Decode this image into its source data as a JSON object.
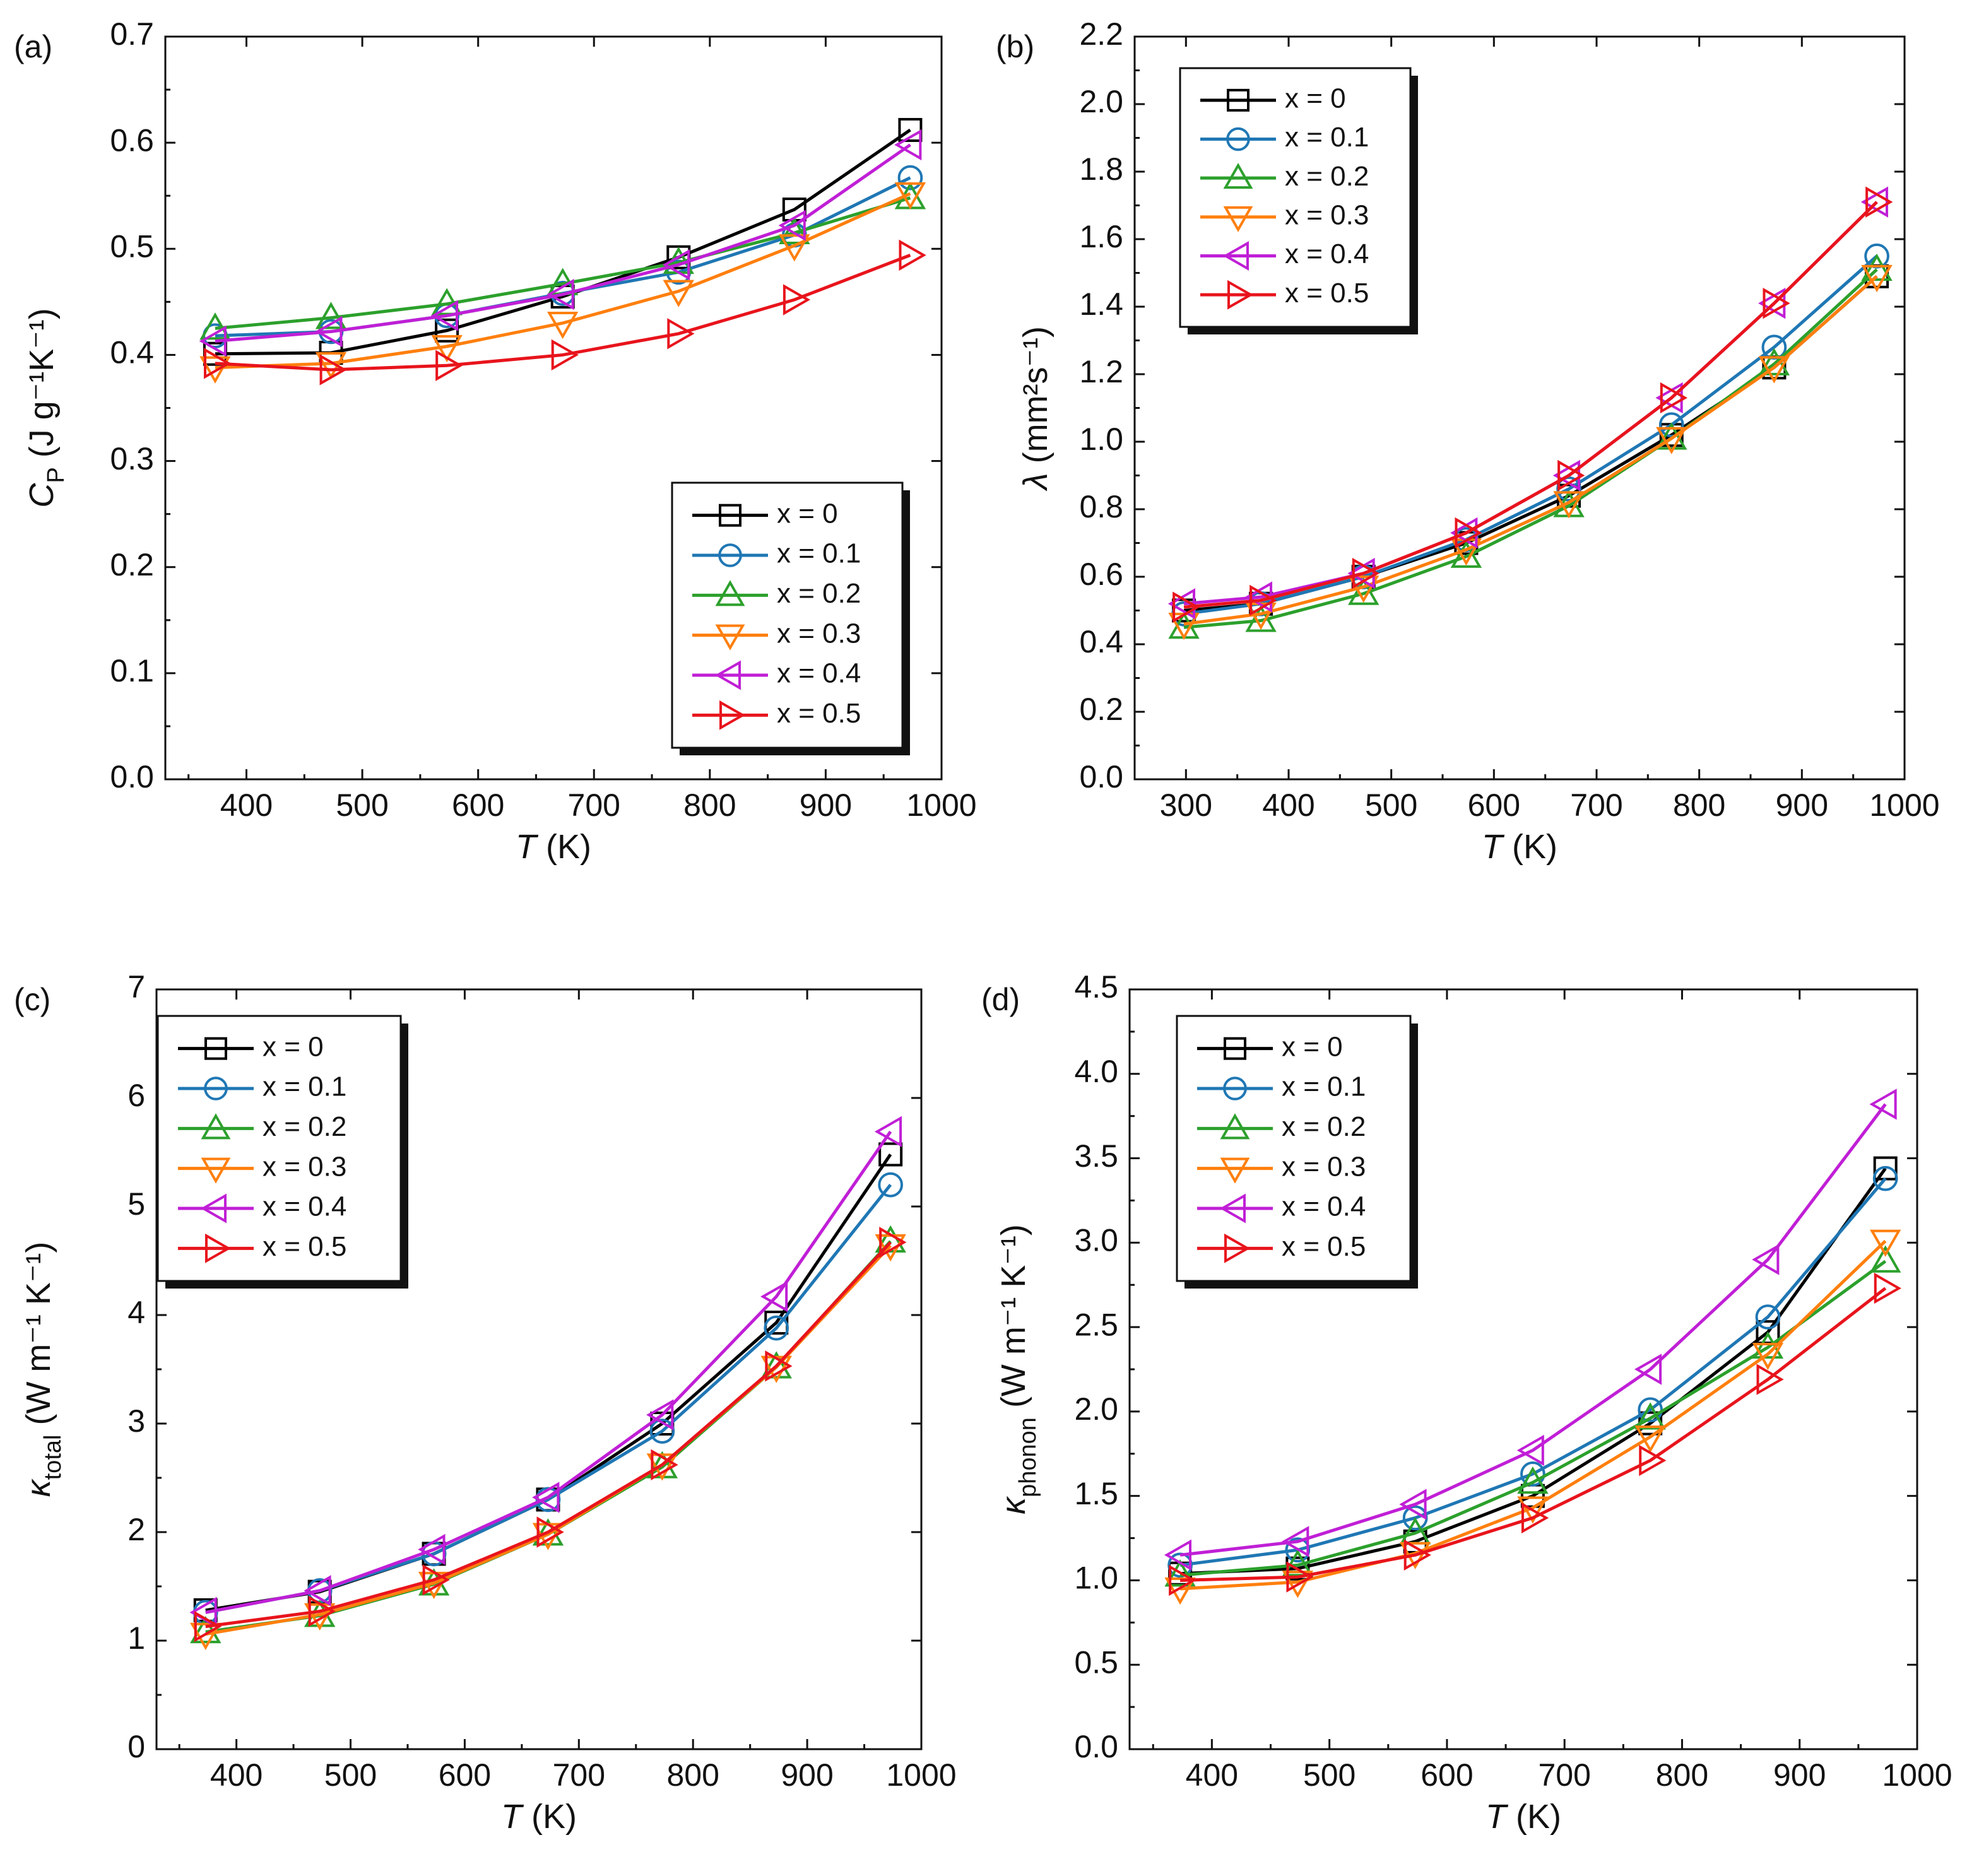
{
  "figure": {
    "legend_var": "x",
    "legend_eq": " = "
  },
  "colors": {
    "x = 0": "#000000",
    "x = 0.1": "#1f77b4",
    "x = 0.2": "#2ca02c",
    "x = 0.3": "#ff7f0e",
    "x = 0.4": "#c01fd6",
    "x = 0.5": "#e8141c"
  },
  "markers": {
    "x = 0": "square",
    "x = 0.1": "circle",
    "x = 0.2": "triangle-up",
    "x = 0.3": "triangle-down",
    "x = 0.4": "triangle-left",
    "x = 0.5": "triangle-right"
  },
  "chart_data": [
    {
      "panel": "(a)",
      "type": "line",
      "ylabel_main": "C",
      "ylabel_sub": "P",
      "ylabel_unit": " (J g⁻¹K⁻¹)",
      "xlabel_main": "T",
      "xlabel_unit": " (K)",
      "xlim": [
        330,
        1000
      ],
      "ylim": [
        0,
        0.7
      ],
      "xticks": [
        400,
        500,
        600,
        700,
        800,
        900,
        1000
      ],
      "yticks": [
        0.0,
        0.1,
        0.2,
        0.3,
        0.4,
        0.5,
        0.6,
        0.7
      ],
      "xtick_labels": [
        "400",
        "500",
        "600",
        "700",
        "800",
        "900",
        "1000"
      ],
      "ytick_labels": [
        "0.0",
        "0.1",
        "0.2",
        "0.3",
        "0.4",
        "0.5",
        "0.6",
        "0.7"
      ],
      "legend_position": "bottom-right",
      "x": [
        373,
        473,
        573,
        673,
        773,
        873,
        973
      ],
      "series": [
        {
          "name": "x = 0",
          "values": [
            0.401,
            0.402,
            0.423,
            0.455,
            0.492,
            0.537,
            0.612
          ]
        },
        {
          "name": "x = 0.1",
          "values": [
            0.418,
            0.422,
            0.437,
            0.458,
            0.478,
            0.513,
            0.567
          ]
        },
        {
          "name": "x = 0.2",
          "values": [
            0.425,
            0.435,
            0.448,
            0.467,
            0.487,
            0.515,
            0.548
          ]
        },
        {
          "name": "x = 0.3",
          "values": [
            0.388,
            0.392,
            0.408,
            0.43,
            0.46,
            0.503,
            0.552
          ]
        },
        {
          "name": "x = 0.4",
          "values": [
            0.413,
            0.422,
            0.437,
            0.457,
            0.485,
            0.522,
            0.598
          ]
        },
        {
          "name": "x = 0.5",
          "values": [
            0.392,
            0.386,
            0.39,
            0.4,
            0.42,
            0.452,
            0.494
          ]
        }
      ]
    },
    {
      "panel": "(b)",
      "type": "line",
      "ylabel_main": "λ",
      "ylabel_sub": "",
      "ylabel_unit": " (mm²s⁻¹)",
      "xlabel_main": "T",
      "xlabel_unit": " (K)",
      "xlim": [
        250,
        1000
      ],
      "ylim": [
        0,
        2.2
      ],
      "xticks": [
        300,
        400,
        500,
        600,
        700,
        800,
        900,
        1000
      ],
      "yticks": [
        0.0,
        0.2,
        0.4,
        0.6,
        0.8,
        1.0,
        1.2,
        1.4,
        1.6,
        1.8,
        2.0,
        2.2
      ],
      "xtick_labels": [
        "300",
        "400",
        "500",
        "600",
        "700",
        "800",
        "900",
        "1000"
      ],
      "ytick_labels": [
        "0.0",
        "0.2",
        "0.4",
        "0.6",
        "0.8",
        "1.0",
        "1.2",
        "1.4",
        "1.6",
        "1.8",
        "2.0",
        "2.2"
      ],
      "legend_position": "top-left",
      "x": [
        298,
        373,
        473,
        573,
        673,
        773,
        873,
        973
      ],
      "series": [
        {
          "name": "x = 0",
          "values": [
            0.5,
            0.52,
            0.6,
            0.7,
            0.84,
            1.02,
            1.22,
            1.49
          ]
        },
        {
          "name": "x = 0.1",
          "values": [
            0.49,
            0.52,
            0.6,
            0.71,
            0.86,
            1.05,
            1.28,
            1.55
          ]
        },
        {
          "name": "x = 0.2",
          "values": [
            0.45,
            0.47,
            0.55,
            0.66,
            0.81,
            1.01,
            1.23,
            1.51
          ]
        },
        {
          "name": "x = 0.3",
          "values": [
            0.46,
            0.49,
            0.57,
            0.68,
            0.82,
            1.01,
            1.22,
            1.49
          ]
        },
        {
          "name": "x = 0.4",
          "values": [
            0.52,
            0.54,
            0.61,
            0.73,
            0.9,
            1.13,
            1.41,
            1.71
          ]
        },
        {
          "name": "x = 0.5",
          "values": [
            0.51,
            0.53,
            0.61,
            0.73,
            0.9,
            1.13,
            1.41,
            1.71
          ]
        }
      ]
    },
    {
      "panel": "(c)",
      "type": "line",
      "ylabel_main": "κ",
      "ylabel_sub": "total",
      "ylabel_unit": " (W m⁻¹ K⁻¹)",
      "xlabel_main": "T",
      "xlabel_unit": " (K)",
      "xlim": [
        330,
        1000
      ],
      "ylim": [
        0,
        7
      ],
      "xticks": [
        400,
        500,
        600,
        700,
        800,
        900,
        1000
      ],
      "yticks": [
        0,
        1,
        2,
        3,
        4,
        5,
        6,
        7
      ],
      "xtick_labels": [
        "400",
        "500",
        "600",
        "700",
        "800",
        "900",
        "1000"
      ],
      "ytick_labels": [
        "0",
        "1",
        "2",
        "3",
        "4",
        "5",
        "6",
        "7"
      ],
      "legend_position": "top-left",
      "x": [
        373,
        473,
        573,
        673,
        773,
        873,
        973
      ],
      "series": [
        {
          "name": "x = 0",
          "values": [
            1.28,
            1.45,
            1.8,
            2.3,
            3.0,
            3.93,
            5.48
          ]
        },
        {
          "name": "x = 0.1",
          "values": [
            1.26,
            1.46,
            1.8,
            2.3,
            2.93,
            3.88,
            5.2
          ]
        },
        {
          "name": "x = 0.2",
          "values": [
            1.08,
            1.23,
            1.52,
            1.98,
            2.6,
            3.52,
            4.68
          ]
        },
        {
          "name": "x = 0.3",
          "values": [
            1.06,
            1.24,
            1.53,
            1.98,
            2.62,
            3.52,
            4.64
          ]
        },
        {
          "name": "x = 0.4",
          "values": [
            1.26,
            1.46,
            1.84,
            2.32,
            3.08,
            4.17,
            5.69
          ]
        },
        {
          "name": "x = 0.5",
          "values": [
            1.13,
            1.27,
            1.56,
            2.0,
            2.62,
            3.53,
            4.67
          ]
        }
      ]
    },
    {
      "panel": "(d)",
      "type": "line",
      "ylabel_main": "κ",
      "ylabel_sub": "phonon",
      "ylabel_unit": " (W m⁻¹ K⁻¹)",
      "xlabel_main": "T",
      "xlabel_unit": " (K)",
      "xlim": [
        330,
        1000
      ],
      "ylim": [
        0,
        4.5
      ],
      "xticks": [
        400,
        500,
        600,
        700,
        800,
        900,
        1000
      ],
      "yticks": [
        0.0,
        0.5,
        1.0,
        1.5,
        2.0,
        2.5,
        3.0,
        3.5,
        4.0,
        4.5
      ],
      "xtick_labels": [
        "400",
        "500",
        "600",
        "700",
        "800",
        "900",
        "1000"
      ],
      "ytick_labels": [
        "0.0",
        "0.5",
        "1.0",
        "1.5",
        "2.0",
        "2.5",
        "3.0",
        "3.5",
        "4.0",
        "4.5"
      ],
      "legend_position": "top-left",
      "x": [
        373,
        473,
        573,
        673,
        773,
        873,
        973
      ],
      "series": [
        {
          "name": "x = 0",
          "values": [
            1.04,
            1.07,
            1.23,
            1.5,
            1.93,
            2.47,
            3.44
          ]
        },
        {
          "name": "x = 0.1",
          "values": [
            1.09,
            1.18,
            1.37,
            1.63,
            2.01,
            2.56,
            3.38
          ]
        },
        {
          "name": "x = 0.2",
          "values": [
            1.03,
            1.09,
            1.28,
            1.58,
            1.96,
            2.38,
            2.89
          ]
        },
        {
          "name": "x = 0.3",
          "values": [
            0.95,
            0.99,
            1.16,
            1.43,
            1.85,
            2.34,
            3.01
          ]
        },
        {
          "name": "x = 0.4",
          "values": [
            1.15,
            1.23,
            1.45,
            1.77,
            2.25,
            2.9,
            3.82
          ]
        },
        {
          "name": "x = 0.5",
          "values": [
            1.0,
            1.02,
            1.15,
            1.37,
            1.71,
            2.19,
            2.73
          ]
        }
      ]
    }
  ]
}
